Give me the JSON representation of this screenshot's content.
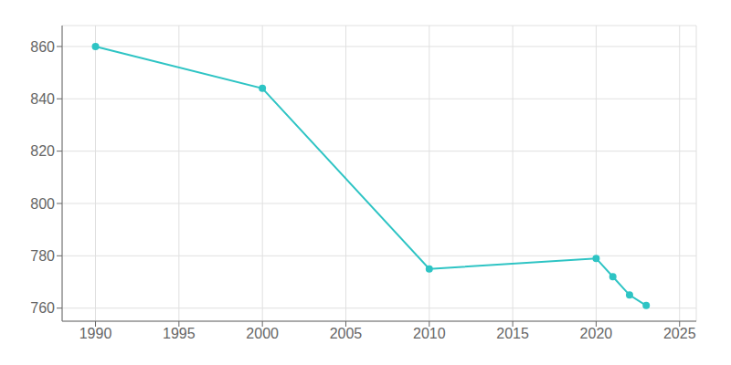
{
  "chart_data": {
    "type": "line",
    "x": [
      1990,
      2000,
      2010,
      2020,
      2021,
      2022,
      2023
    ],
    "values": [
      860,
      844,
      775,
      779,
      772,
      765,
      761
    ],
    "color": "#2EC4C4",
    "marker": "circle",
    "xlim": [
      1988,
      2026
    ],
    "ylim": [
      755,
      868
    ],
    "xticks": [
      1990,
      1995,
      2000,
      2005,
      2010,
      2015,
      2020,
      2025
    ],
    "yticks": [
      760,
      780,
      800,
      820,
      840,
      860
    ],
    "grid": true
  }
}
